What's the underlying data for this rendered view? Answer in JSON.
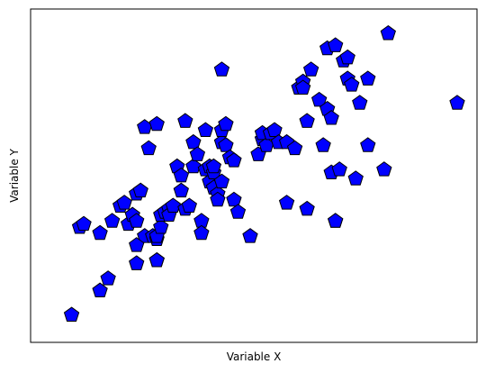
{
  "chart_data": {
    "type": "scatter",
    "title": "",
    "xlabel": "Variable X",
    "ylabel": "Variable Y",
    "xlim": [
      0,
      100
    ],
    "ylim": [
      0,
      100
    ],
    "grid": false,
    "ticks_visible": false,
    "marker": {
      "shape": "pentagon",
      "fill": "#0000ff",
      "edge": "#000000"
    },
    "points": [
      [
        5,
        4
      ],
      [
        12,
        12
      ],
      [
        14,
        16
      ],
      [
        7,
        33
      ],
      [
        8,
        34
      ],
      [
        12,
        31
      ],
      [
        15,
        35
      ],
      [
        17,
        40
      ],
      [
        18,
        41
      ],
      [
        19,
        34
      ],
      [
        20,
        37
      ],
      [
        21,
        35
      ],
      [
        21,
        44
      ],
      [
        22,
        45
      ],
      [
        23,
        30
      ],
      [
        21,
        27
      ],
      [
        21,
        21
      ],
      [
        25,
        30
      ],
      [
        26,
        29
      ],
      [
        26,
        22
      ],
      [
        26,
        30
      ],
      [
        26,
        22
      ],
      [
        27,
        33
      ],
      [
        27,
        37
      ],
      [
        28,
        38
      ],
      [
        29,
        39
      ],
      [
        29,
        37
      ],
      [
        30,
        40
      ],
      [
        32,
        45
      ],
      [
        33,
        39
      ],
      [
        34,
        40
      ],
      [
        37,
        35
      ],
      [
        37,
        31
      ],
      [
        31,
        53
      ],
      [
        32,
        50
      ],
      [
        23,
        66
      ],
      [
        24,
        59
      ],
      [
        26,
        67
      ],
      [
        33,
        68
      ],
      [
        35,
        61
      ],
      [
        35,
        53
      ],
      [
        36,
        57
      ],
      [
        38,
        65
      ],
      [
        38,
        52
      ],
      [
        39,
        53
      ],
      [
        39,
        48
      ],
      [
        40,
        51
      ],
      [
        40,
        46
      ],
      [
        40,
        53
      ],
      [
        41,
        44
      ],
      [
        41,
        42
      ],
      [
        42,
        48
      ],
      [
        42,
        61
      ],
      [
        42,
        65
      ],
      [
        43,
        67
      ],
      [
        43,
        60
      ],
      [
        44,
        56
      ],
      [
        45,
        55
      ],
      [
        45,
        42
      ],
      [
        46,
        38
      ],
      [
        42,
        85
      ],
      [
        49,
        30
      ],
      [
        51,
        57
      ],
      [
        52,
        62
      ],
      [
        52,
        64
      ],
      [
        53,
        60
      ],
      [
        54,
        64
      ],
      [
        55,
        65
      ],
      [
        56,
        61
      ],
      [
        58,
        61
      ],
      [
        58,
        41
      ],
      [
        60,
        59
      ],
      [
        61,
        79
      ],
      [
        62,
        81
      ],
      [
        62,
        79
      ],
      [
        63,
        68
      ],
      [
        63,
        39
      ],
      [
        64,
        85
      ],
      [
        66,
        75
      ],
      [
        67,
        60
      ],
      [
        68,
        92
      ],
      [
        68,
        72
      ],
      [
        69,
        51
      ],
      [
        69,
        69
      ],
      [
        70,
        93
      ],
      [
        70,
        35
      ],
      [
        70,
        35
      ],
      [
        71,
        52
      ],
      [
        72,
        88
      ],
      [
        73,
        89
      ],
      [
        73,
        82
      ],
      [
        74,
        80
      ],
      [
        75,
        49
      ],
      [
        76,
        74
      ],
      [
        78,
        82
      ],
      [
        78,
        60
      ],
      [
        82,
        52
      ],
      [
        83,
        97
      ],
      [
        100,
        74
      ]
    ]
  }
}
